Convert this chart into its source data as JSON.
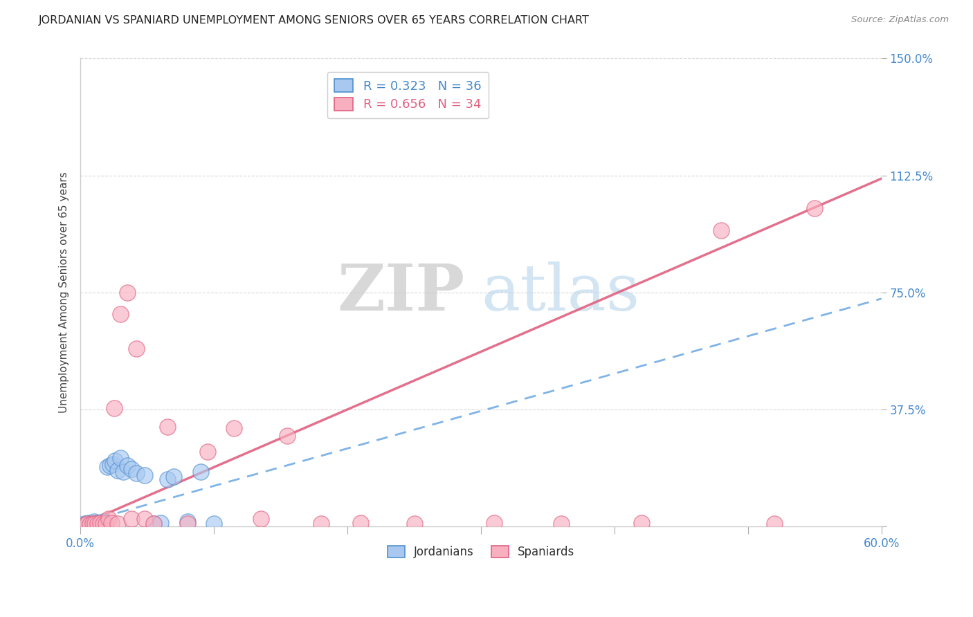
{
  "title": "JORDANIAN VS SPANIARD UNEMPLOYMENT AMONG SENIORS OVER 65 YEARS CORRELATION CHART",
  "source": "Source: ZipAtlas.com",
  "ylabel": "Unemployment Among Seniors over 65 years",
  "legend_jordanians": "Jordanians",
  "legend_spaniards": "Spaniards",
  "r_jordanians": 0.323,
  "n_jordanians": 36,
  "r_spaniards": 0.656,
  "n_spaniards": 34,
  "color_jordanians_fill": "#a8c8f0",
  "color_jordanians_edge": "#5090d0",
  "color_spaniards_fill": "#f8b0c0",
  "color_spaniards_edge": "#e06080",
  "color_jordan_line": "#60a0e0",
  "color_spain_line": "#e06080",
  "xlim": [
    0.0,
    0.6
  ],
  "ylim": [
    0.0,
    1.5
  ],
  "watermark_zip": "ZIP",
  "watermark_atlas": "atlas",
  "background_color": "#ffffff",
  "grid_color": "#d8d8d8",
  "jordan_x": [
    0.002,
    0.003,
    0.004,
    0.005,
    0.006,
    0.007,
    0.008,
    0.009,
    0.01,
    0.011,
    0.012,
    0.013,
    0.014,
    0.015,
    0.016,
    0.017,
    0.018,
    0.019,
    0.02,
    0.022,
    0.024,
    0.026,
    0.028,
    0.03,
    0.032,
    0.035,
    0.038,
    0.042,
    0.048,
    0.055,
    0.06,
    0.065,
    0.07,
    0.08,
    0.09,
    0.1
  ],
  "jordan_y": [
    0.005,
    0.01,
    0.005,
    0.008,
    0.012,
    0.006,
    0.01,
    0.007,
    0.015,
    0.008,
    0.01,
    0.012,
    0.008,
    0.01,
    0.012,
    0.015,
    0.01,
    0.008,
    0.19,
    0.195,
    0.2,
    0.21,
    0.18,
    0.22,
    0.175,
    0.195,
    0.185,
    0.17,
    0.165,
    0.01,
    0.012,
    0.15,
    0.16,
    0.015,
    0.175,
    0.01
  ],
  "spain_x": [
    0.003,
    0.005,
    0.007,
    0.009,
    0.011,
    0.013,
    0.015,
    0.017,
    0.019,
    0.021,
    0.023,
    0.025,
    0.028,
    0.03,
    0.035,
    0.038,
    0.042,
    0.048,
    0.055,
    0.065,
    0.08,
    0.095,
    0.115,
    0.135,
    0.155,
    0.18,
    0.21,
    0.25,
    0.31,
    0.36,
    0.42,
    0.48,
    0.52,
    0.55
  ],
  "spain_y": [
    0.005,
    0.008,
    0.006,
    0.01,
    0.008,
    0.01,
    0.012,
    0.008,
    0.01,
    0.025,
    0.012,
    0.38,
    0.01,
    0.68,
    0.75,
    0.025,
    0.57,
    0.025,
    0.01,
    0.32,
    0.01,
    0.24,
    0.315,
    0.025,
    0.29,
    0.01,
    0.012,
    0.01,
    0.012,
    0.01,
    0.012,
    0.95,
    0.01,
    1.02
  ],
  "jordan_slope": 1.2,
  "jordan_intercept": 0.01,
  "spain_slope": 1.85,
  "spain_intercept": 0.005
}
